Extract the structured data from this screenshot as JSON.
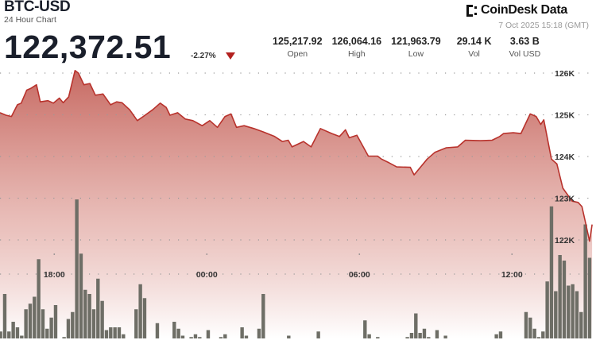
{
  "header": {
    "pair": "BTC-USD",
    "subtitle": "24 Hour Chart",
    "price": "122,372.51",
    "change": "-2.27%",
    "change_direction": "down",
    "timestamp": "7 Oct 2025 15:18 (GMT)",
    "logo_text": "CoinDesk Data"
  },
  "stats": [
    {
      "value": "125,217.92",
      "label": "Open"
    },
    {
      "value": "126,064.16",
      "label": "High"
    },
    {
      "value": "121,963.79",
      "label": "Low"
    },
    {
      "value": "29.14 K",
      "label": "Vol"
    },
    {
      "value": "3.63 B",
      "label": "Vol USD"
    }
  ],
  "colors": {
    "line": "#b8322c",
    "fill_top": "#c4625a",
    "volume_bar": "#6e6e66",
    "down": "#b3211f"
  },
  "chart_data": {
    "type": "area",
    "y_ticks": [
      "126K",
      "125K",
      "124K",
      "123K",
      "122K"
    ],
    "y_tick_values": [
      126000,
      125000,
      124000,
      123000,
      122000
    ],
    "x_ticks": [
      "18:00",
      "00:00",
      "06:00",
      "12:00"
    ],
    "grid": "dotted horizontal",
    "price_series": [
      [
        "15:52",
        125050
      ],
      [
        "16:06",
        124990
      ],
      [
        "16:19",
        124960
      ],
      [
        "16:33",
        125240
      ],
      [
        "16:42",
        125280
      ],
      [
        "16:55",
        125590
      ],
      [
        "17:04",
        125630
      ],
      [
        "17:18",
        125720
      ],
      [
        "17:27",
        125310
      ],
      [
        "17:45",
        125340
      ],
      [
        "17:58",
        125280
      ],
      [
        "18:12",
        125400
      ],
      [
        "18:21",
        125290
      ],
      [
        "18:34",
        125430
      ],
      [
        "18:49",
        126060
      ],
      [
        "18:57",
        126000
      ],
      [
        "19:10",
        125720
      ],
      [
        "19:24",
        125750
      ],
      [
        "19:37",
        125470
      ],
      [
        "19:55",
        125500
      ],
      [
        "20:13",
        125240
      ],
      [
        "20:27",
        125310
      ],
      [
        "20:40",
        125290
      ],
      [
        "20:58",
        125120
      ],
      [
        "21:16",
        124860
      ],
      [
        "21:30",
        124960
      ],
      [
        "21:52",
        125120
      ],
      [
        "22:10",
        125280
      ],
      [
        "22:24",
        125180
      ],
      [
        "22:33",
        124990
      ],
      [
        "22:51",
        125050
      ],
      [
        "23:09",
        124900
      ],
      [
        "23:27",
        124860
      ],
      [
        "23:49",
        124740
      ],
      [
        "00:07",
        124860
      ],
      [
        "00:25",
        124700
      ],
      [
        "00:43",
        124960
      ],
      [
        "00:57",
        125020
      ],
      [
        "01:10",
        124700
      ],
      [
        "01:28",
        124740
      ],
      [
        "01:51",
        124670
      ],
      [
        "02:13",
        124590
      ],
      [
        "02:40",
        124480
      ],
      [
        "02:58",
        124360
      ],
      [
        "03:12",
        124390
      ],
      [
        "03:21",
        124230
      ],
      [
        "03:48",
        124360
      ],
      [
        "04:06",
        124230
      ],
      [
        "04:28",
        124670
      ],
      [
        "04:55",
        124550
      ],
      [
        "05:13",
        124480
      ],
      [
        "05:27",
        124640
      ],
      [
        "05:36",
        124450
      ],
      [
        "05:54",
        124510
      ],
      [
        "06:21",
        124010
      ],
      [
        "06:43",
        124010
      ],
      [
        "06:52",
        123940
      ],
      [
        "07:10",
        123850
      ],
      [
        "07:28",
        123750
      ],
      [
        "08:00",
        123740
      ],
      [
        "08:09",
        123560
      ],
      [
        "08:22",
        123720
      ],
      [
        "08:40",
        123940
      ],
      [
        "08:58",
        124100
      ],
      [
        "09:25",
        124210
      ],
      [
        "09:52",
        124230
      ],
      [
        "10:10",
        124390
      ],
      [
        "10:46",
        124380
      ],
      [
        "11:13",
        124390
      ],
      [
        "11:31",
        124480
      ],
      [
        "11:40",
        124550
      ],
      [
        "12:03",
        124570
      ],
      [
        "12:21",
        124550
      ],
      [
        "12:43",
        125020
      ],
      [
        "12:57",
        124960
      ],
      [
        "13:08",
        124770
      ],
      [
        "13:15",
        124880
      ],
      [
        "13:33",
        123940
      ],
      [
        "13:46",
        123820
      ],
      [
        "14:00",
        123240
      ],
      [
        "14:22",
        122930
      ],
      [
        "14:36",
        122900
      ],
      [
        "14:45",
        122800
      ],
      [
        "14:54",
        122390
      ],
      [
        "15:03",
        121970
      ],
      [
        "15:09",
        122370
      ]
    ],
    "volume_start": "15:50",
    "volume_interval_minutes": 10,
    "volume_relative": [
      5,
      32,
      5,
      12,
      8,
      2,
      21,
      25,
      30,
      57,
      21,
      7,
      15,
      24,
      0,
      1,
      14,
      19,
      100,
      61,
      35,
      32,
      21,
      43,
      27,
      6,
      8,
      8,
      8,
      3,
      0,
      0,
      21,
      39,
      29,
      0,
      0,
      11,
      0,
      0,
      0,
      12,
      7,
      2,
      0,
      1,
      3,
      1,
      0,
      6,
      0,
      0,
      1,
      3,
      0,
      0,
      0,
      8,
      2,
      0,
      0,
      7,
      32,
      0,
      0,
      0,
      0,
      0,
      2,
      0,
      0,
      0,
      0,
      0,
      0,
      5,
      0,
      0,
      0,
      0,
      0,
      0,
      0,
      0,
      0,
      0,
      13,
      3,
      0,
      1,
      0,
      0,
      0,
      0,
      0,
      0,
      1,
      4,
      18,
      4,
      7,
      1,
      0,
      6,
      0,
      2,
      0,
      0,
      0,
      0,
      0,
      0,
      0,
      0,
      0,
      0,
      0,
      3,
      5,
      0,
      0,
      0,
      0,
      0,
      19,
      15,
      7,
      1,
      5,
      41,
      95,
      34,
      60,
      56,
      38,
      39,
      34,
      19,
      82,
      58
    ]
  }
}
